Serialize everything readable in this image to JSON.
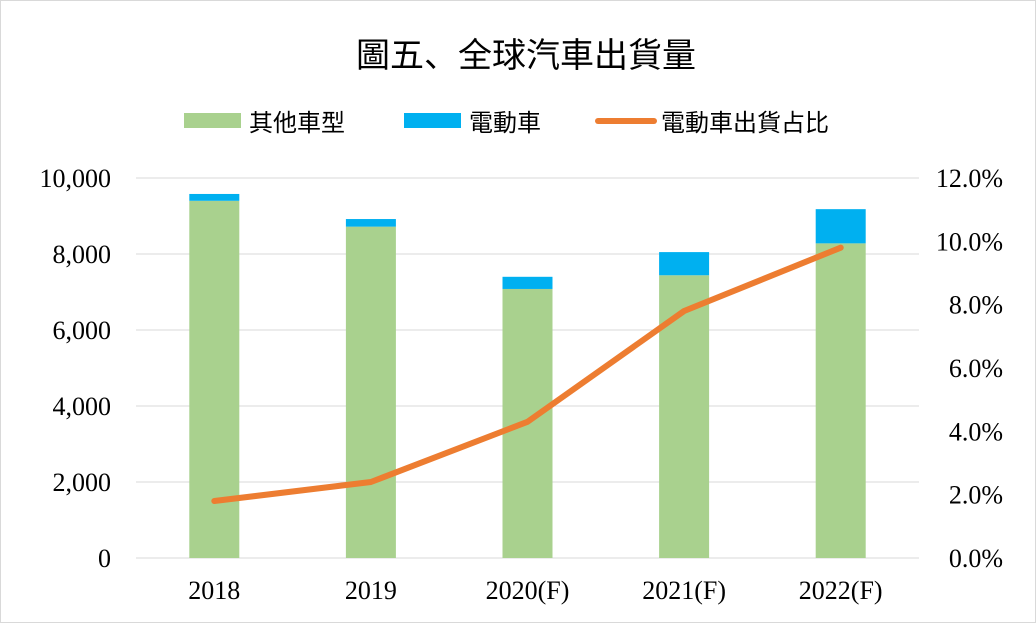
{
  "chart_data": {
    "type": "bar",
    "stacked": true,
    "title": "圖五、全球汽車出貨量",
    "categories": [
      "2018",
      "2019",
      "2020(F)",
      "2021(F)",
      "2022(F)"
    ],
    "series": [
      {
        "name": "其他車型",
        "kind": "bar",
        "axis": "left",
        "color": "#a9d18e",
        "values": [
          9400,
          8720,
          7080,
          7440,
          8280
        ]
      },
      {
        "name": "電動車",
        "kind": "bar",
        "axis": "left",
        "color": "#00b0f0",
        "values": [
          180,
          200,
          320,
          610,
          900
        ]
      },
      {
        "name": "電動車出貨占比",
        "kind": "line",
        "axis": "right",
        "color": "#ed7d31",
        "values": [
          1.8,
          2.4,
          4.3,
          7.8,
          9.8
        ]
      }
    ],
    "y_left": {
      "min": 0,
      "max": 10000,
      "ticks": [
        0,
        2000,
        4000,
        6000,
        8000,
        10000
      ],
      "tick_labels": [
        "0",
        "2,000",
        "4,000",
        "6,000",
        "8,000",
        "10,000"
      ]
    },
    "y_right": {
      "min": 0,
      "max": 12,
      "ticks": [
        0,
        2,
        4,
        6,
        8,
        10,
        12
      ],
      "tick_labels": [
        "0.0%",
        "2.0%",
        "4.0%",
        "6.0%",
        "8.0%",
        "10.0%",
        "12.0%"
      ]
    },
    "grid": true,
    "legend_position": "top"
  }
}
